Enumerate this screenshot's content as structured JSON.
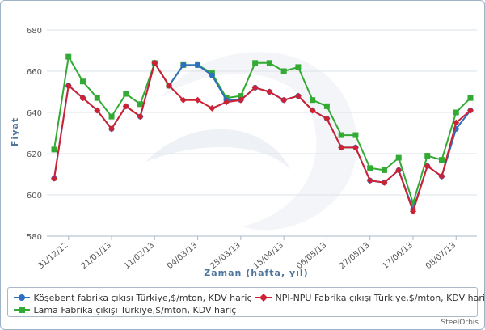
{
  "chart_data": {
    "type": "line",
    "title": "",
    "xlabel": "Zaman (hafta, yıl)",
    "ylabel": "Fiyat",
    "ylim": [
      580,
      680
    ],
    "yticks": [
      580,
      600,
      620,
      640,
      660,
      680
    ],
    "grid": true,
    "legend_placement": "bottom",
    "x_tick_labels": [
      {
        "index": 1,
        "label": "31/12/12"
      },
      {
        "index": 4,
        "label": "21/01/13"
      },
      {
        "index": 7,
        "label": "11/02/13"
      },
      {
        "index": 10,
        "label": "04/03/13"
      },
      {
        "index": 13,
        "label": "25/03/13"
      },
      {
        "index": 16,
        "label": "15/04/13"
      },
      {
        "index": 19,
        "label": "06/05/13"
      },
      {
        "index": 22,
        "label": "27/05/13"
      },
      {
        "index": 25,
        "label": "17/06/13"
      },
      {
        "index": 28,
        "label": "08/07/13"
      }
    ],
    "series": [
      {
        "name": "Köşebent fabrika çıkışı Türkiye,$/mton, KDV hariç",
        "color": "#2f6fbf",
        "marker": "circle",
        "values": [
          608,
          653,
          647,
          641,
          632,
          643,
          638,
          664,
          653,
          663,
          663,
          658,
          646,
          646,
          652,
          650,
          646,
          648,
          641,
          637,
          623,
          623,
          607,
          606,
          612,
          593,
          614,
          609,
          632,
          641
        ]
      },
      {
        "name": "NPI-NPU Fabrika çıkışı Türkiye,$/mton, KDV hariç",
        "color": "#cc2233",
        "marker": "diamond",
        "values": [
          608,
          653,
          647,
          641,
          632,
          643,
          638,
          664,
          653,
          646,
          646,
          642,
          645,
          646,
          652,
          650,
          646,
          648,
          641,
          637,
          623,
          623,
          607,
          606,
          612,
          592,
          614,
          609,
          635,
          641
        ]
      },
      {
        "name": "Lama Fabrika çıkışı Türkiye,$/mton, KDV hariç",
        "color": "#33aa33",
        "marker": "square",
        "values": [
          622,
          667,
          655,
          647,
          638,
          649,
          644,
          664,
          653,
          663,
          663,
          659,
          647,
          648,
          664,
          664,
          660,
          662,
          646,
          643,
          629,
          629,
          613,
          612,
          618,
          596,
          619,
          617,
          640,
          647
        ]
      }
    ]
  },
  "credit": "SteelOrbis"
}
